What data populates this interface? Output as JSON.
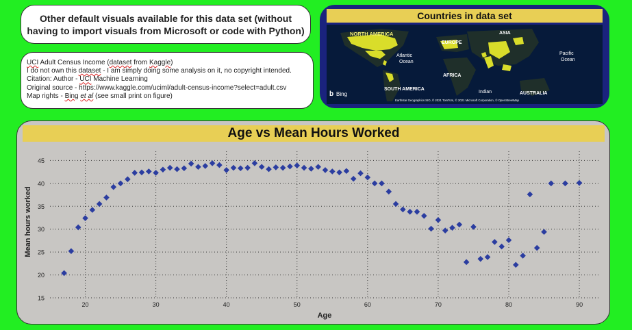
{
  "title_card": {
    "text": "Other default visuals available for this data set (without having to import visuals from Microsoft or code with Python)"
  },
  "info": {
    "line1_a": "UCI",
    "line1_b": " Adult Census Income (",
    "line1_c": "dataset",
    "line1_d": " from ",
    "line1_e": "Kaggle",
    "line1_f": ")",
    "line2_a": "I do not own this ",
    "line2_b": "dataset",
    "line2_c": " - I am simply doing some analysis on it, no copyright intended.",
    "line3_a": "Citation:  Author - ",
    "line3_b": "UCI",
    "line3_c": " Machine Learning",
    "line4": "Original source - https://www.kaggle.com/uciml/adult-census-income?select=adult.csv",
    "line5_a": "Map rights - ",
    "line5_b": "Bing",
    "line5_c": " ",
    "line5_d": "et al",
    "line5_e": "  (see small print on figure)"
  },
  "map": {
    "title": "Countries in data set",
    "labels": {
      "north_america": "NORTH AMERICA",
      "europe": "EUROPE",
      "asia": "ASIA",
      "atlantic": "Atlantic",
      "ocean1": "Ocean",
      "pacific": "Pacific",
      "ocean2": "Ocean",
      "africa": "AFRICA",
      "south_america": "SOUTH AMERICA",
      "indian": "Indian",
      "australia": "AUSTRALIA",
      "bing": "Bing",
      "attribution": "Earthstar Geographics SIO, © 2021 TomTom, © 2021 Microsoft Corporation, © OpenStreetMap"
    },
    "ocean_color": "#061a3a",
    "land_color": "#1f2f2a",
    "highlight_color": "#d9dd2a"
  },
  "chart_data": {
    "type": "scatter",
    "title": "Age vs Mean Hours Worked",
    "xlabel": "Age",
    "ylabel": "Mean hours worked",
    "xlim": [
      15,
      93
    ],
    "ylim": [
      15,
      47
    ],
    "xticks": [
      20,
      30,
      40,
      50,
      60,
      70,
      80,
      90
    ],
    "yticks": [
      15,
      20,
      25,
      30,
      35,
      40,
      45
    ],
    "grid": true,
    "marker": "diamond",
    "marker_color": "#2b3da0",
    "x": [
      17,
      18,
      19,
      20,
      21,
      22,
      23,
      24,
      25,
      26,
      27,
      28,
      29,
      30,
      31,
      32,
      33,
      34,
      35,
      36,
      37,
      38,
      39,
      40,
      41,
      42,
      43,
      44,
      45,
      46,
      47,
      48,
      49,
      50,
      51,
      52,
      53,
      54,
      55,
      56,
      57,
      58,
      59,
      60,
      61,
      62,
      63,
      64,
      65,
      66,
      67,
      68,
      69,
      70,
      71,
      72,
      73,
      74,
      75,
      76,
      77,
      78,
      79,
      80,
      81,
      82,
      83,
      84,
      85,
      86,
      88,
      90
    ],
    "y": [
      20.4,
      25.2,
      30.4,
      32.4,
      34.2,
      35.5,
      36.9,
      39.2,
      40.0,
      40.9,
      42.3,
      42.4,
      42.6,
      42.3,
      43.0,
      43.4,
      43.1,
      43.3,
      44.3,
      43.6,
      43.8,
      44.4,
      44.0,
      42.9,
      43.4,
      43.3,
      43.4,
      44.4,
      43.6,
      43.1,
      43.5,
      43.4,
      43.7,
      43.9,
      43.4,
      43.2,
      43.6,
      42.9,
      42.6,
      42.4,
      42.7,
      41.0,
      42.2,
      41.3,
      40.0,
      40.0,
      38.2,
      35.5,
      34.3,
      33.8,
      33.8,
      32.9,
      30.1,
      32.0,
      29.7,
      30.3,
      31.0,
      22.8,
      30.5,
      23.5,
      23.9,
      27.2,
      26.2,
      27.6,
      22.2,
      24.2,
      37.6,
      25.9,
      29.4,
      40.0,
      40.0,
      40.1
    ]
  }
}
